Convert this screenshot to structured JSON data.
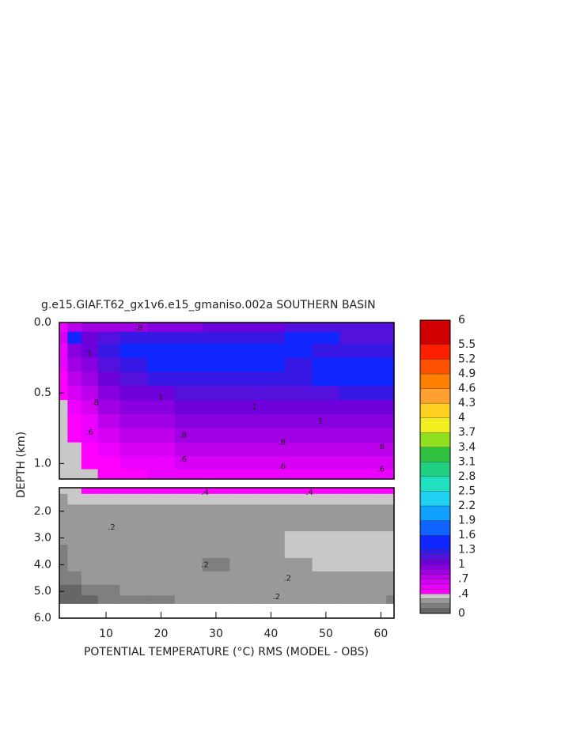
{
  "chart_data": {
    "type": "contour",
    "title": "g.e15.GIAF.T62_gx1v6.e15_gmaniso.002a SOUTHERN BASIN",
    "xlabel": "POTENTIAL TEMPERATURE (°C) RMS (MODEL - OBS)",
    "ylabel": "DEPTH (km)",
    "xlim": [
      1.5,
      62.4
    ],
    "xticks": [
      10,
      20,
      30,
      40,
      50,
      60
    ],
    "x": [
      2,
      4,
      7,
      10,
      15,
      20,
      25,
      30,
      35,
      40,
      45,
      50,
      55,
      60,
      62
    ],
    "panels": [
      {
        "ylim": [
          0,
          1.11
        ],
        "yticks": [
          {
            "value": 0,
            "label": "0.0"
          },
          {
            "value": 0.5,
            "label": "0.5"
          },
          {
            "value": 1.0,
            "label": "1.0"
          }
        ],
        "y": [
          0.03,
          0.1,
          0.2,
          0.3,
          0.4,
          0.5,
          0.6,
          0.7,
          0.8,
          0.9,
          1.0,
          1.08
        ],
        "z": [
          [
            0.5,
            0.7,
            0.8,
            0.85,
            0.85,
            0.9,
            0.95,
            1.0,
            1.0,
            1.05,
            1.1,
            1.1,
            1.1,
            1.15,
            1.15
          ],
          [
            0.6,
            1.35,
            1.0,
            1.1,
            1.2,
            1.25,
            1.25,
            1.25,
            1.25,
            1.2,
            1.3,
            1.35,
            1.1,
            1.15,
            1.15
          ],
          [
            0.55,
            0.9,
            1.0,
            1.2,
            1.35,
            1.35,
            1.35,
            1.35,
            1.35,
            1.3,
            1.3,
            1.25,
            1.2,
            1.2,
            1.2
          ],
          [
            0.5,
            0.8,
            0.95,
            1.1,
            1.2,
            1.3,
            1.35,
            1.35,
            1.35,
            1.3,
            1.25,
            1.35,
            1.35,
            1.3,
            1.3
          ],
          [
            0.45,
            0.7,
            0.85,
            1.0,
            1.1,
            1.2,
            1.25,
            1.25,
            1.25,
            1.25,
            1.2,
            1.35,
            1.4,
            1.4,
            1.4
          ],
          [
            0.4,
            0.6,
            0.75,
            0.9,
            1.0,
            1.05,
            1.1,
            1.15,
            1.15,
            1.15,
            1.15,
            1.15,
            1.2,
            1.2,
            1.2
          ],
          [
            0.38,
            0.5,
            0.65,
            0.8,
            0.9,
            0.95,
            1.0,
            1.0,
            1.0,
            1.0,
            1.0,
            1.0,
            1.0,
            1.0,
            1.0
          ],
          [
            0.3,
            0.45,
            0.55,
            0.7,
            0.8,
            0.85,
            0.9,
            0.9,
            0.92,
            0.92,
            0.92,
            0.92,
            0.92,
            0.92,
            0.92
          ],
          [
            0.3,
            0.4,
            0.5,
            0.6,
            0.7,
            0.78,
            0.8,
            0.82,
            0.82,
            0.82,
            0.82,
            0.82,
            0.82,
            0.8,
            0.8
          ],
          [
            0.3,
            0.38,
            0.45,
            0.55,
            0.62,
            0.68,
            0.7,
            0.72,
            0.72,
            0.72,
            0.72,
            0.72,
            0.72,
            0.7,
            0.7
          ],
          [
            0.3,
            0.35,
            0.4,
            0.48,
            0.55,
            0.58,
            0.6,
            0.62,
            0.62,
            0.62,
            0.62,
            0.62,
            0.6,
            0.6,
            0.6
          ],
          [
            0.3,
            0.32,
            0.38,
            0.42,
            0.45,
            0.5,
            0.52,
            0.55,
            0.55,
            0.55,
            0.55,
            0.55,
            0.55,
            0.55,
            0.55
          ]
        ]
      },
      {
        "ylim": [
          1.12,
          6.0
        ],
        "yticks": [
          {
            "value": 2,
            "label": "2.0"
          },
          {
            "value": 3,
            "label": "3.0"
          },
          {
            "value": 4,
            "label": "4.0"
          },
          {
            "value": 5,
            "label": "5.0"
          },
          {
            "value": 6,
            "label": "6.0"
          }
        ],
        "y": [
          1.2,
          1.5,
          2.0,
          2.5,
          3.0,
          3.5,
          4.0,
          4.5,
          5.0,
          5.3
        ],
        "z": [
          [
            0.35,
            0.38,
            0.4,
            0.4,
            0.42,
            0.45,
            0.45,
            0.45,
            0.45,
            0.45,
            0.45,
            0.45,
            0.45,
            0.45,
            0.45
          ],
          [
            0.28,
            0.3,
            0.32,
            0.33,
            0.35,
            0.35,
            0.36,
            0.36,
            0.36,
            0.36,
            0.38,
            0.38,
            0.38,
            0.38,
            0.38
          ],
          [
            0.22,
            0.28,
            0.28,
            0.25,
            0.25,
            0.25,
            0.28,
            0.28,
            0.28,
            0.28,
            0.28,
            0.28,
            0.28,
            0.28,
            0.28
          ],
          [
            0.2,
            0.28,
            0.28,
            0.2,
            0.25,
            0.25,
            0.25,
            0.25,
            0.25,
            0.25,
            0.28,
            0.28,
            0.28,
            0.28,
            0.28
          ],
          [
            0.2,
            0.28,
            0.28,
            0.25,
            0.25,
            0.25,
            0.25,
            0.25,
            0.25,
            0.25,
            0.32,
            0.32,
            0.32,
            0.32,
            0.32
          ],
          [
            0.18,
            0.28,
            0.28,
            0.28,
            0.25,
            0.25,
            0.25,
            0.25,
            0.25,
            0.25,
            0.32,
            0.32,
            0.32,
            0.32,
            0.32
          ],
          [
            0.15,
            0.25,
            0.28,
            0.28,
            0.28,
            0.25,
            0.22,
            0.18,
            0.25,
            0.25,
            0.28,
            0.32,
            0.32,
            0.32,
            0.32
          ],
          [
            0.12,
            0.15,
            0.22,
            0.25,
            0.28,
            0.28,
            0.28,
            0.25,
            0.22,
            0.2,
            0.25,
            0.25,
            0.25,
            0.25,
            0.25
          ],
          [
            0.08,
            0.08,
            0.12,
            0.15,
            0.2,
            0.22,
            0.25,
            0.25,
            0.25,
            0.25,
            0.25,
            0.25,
            0.25,
            0.25,
            0.22
          ],
          [
            0.05,
            0.05,
            0.08,
            0.1,
            0.15,
            0.18,
            0.25,
            0.25,
            0.2,
            0.2,
            0.25,
            0.25,
            0.25,
            0.25,
            0.15
          ]
        ]
      }
    ],
    "annotations": [
      {
        "label": ".8",
        "x": 16,
        "y": 0.04,
        "panel": 0
      },
      {
        "label": "1",
        "x": 7,
        "y": 0.22,
        "panel": 0
      },
      {
        "label": "1",
        "x": 20,
        "y": 0.53,
        "panel": 0
      },
      {
        "label": "1",
        "x": 37,
        "y": 0.6,
        "panel": 0
      },
      {
        "label": "1",
        "x": 49,
        "y": 0.7,
        "panel": 0
      },
      {
        "label": ".8",
        "x": 8,
        "y": 0.57,
        "panel": 0
      },
      {
        "label": ".6",
        "x": 7,
        "y": 0.78,
        "panel": 0
      },
      {
        "label": ".8",
        "x": 24,
        "y": 0.8,
        "panel": 0
      },
      {
        "label": ".8",
        "x": 42,
        "y": 0.85,
        "panel": 0
      },
      {
        "label": ".8",
        "x": 60,
        "y": 0.88,
        "panel": 0
      },
      {
        "label": ".6",
        "x": 24,
        "y": 0.97,
        "panel": 0
      },
      {
        "label": ".6",
        "x": 42,
        "y": 1.02,
        "panel": 0
      },
      {
        "label": ".6",
        "x": 60,
        "y": 1.04,
        "panel": 0
      },
      {
        "label": ".4",
        "x": 28,
        "y": 1.3,
        "panel": 1
      },
      {
        "label": ".4",
        "x": 47,
        "y": 1.3,
        "panel": 1
      },
      {
        "label": ".2",
        "x": 11,
        "y": 2.6,
        "panel": 1
      },
      {
        "label": ".2",
        "x": 28,
        "y": 4.0,
        "panel": 1
      },
      {
        "label": ".2",
        "x": 43,
        "y": 4.5,
        "panel": 1
      },
      {
        "label": ".2",
        "x": 41,
        "y": 5.2,
        "panel": 1
      }
    ],
    "colorbar": {
      "levels": [
        0,
        0.1,
        0.2,
        0.3,
        0.4,
        0.5,
        0.6,
        0.7,
        0.8,
        0.9,
        1,
        1.1,
        1.2,
        1.3,
        1.6,
        1.9,
        2.2,
        2.5,
        2.8,
        3.1,
        3.4,
        3.7,
        4,
        4.3,
        4.6,
        4.9,
        5.2,
        5.5,
        6
      ],
      "colors": [
        "#666666",
        "#7f7f7f",
        "#999999",
        "#c8c8c8",
        "#ff00ff",
        "#ec00ff",
        "#d800f4",
        "#bc00ec",
        "#a000e4",
        "#8800e0",
        "#6e00dc",
        "#5410dc",
        "#3818e4",
        "#1028ff",
        "#1064ff",
        "#10a0ff",
        "#20d0f0",
        "#20e0c0",
        "#20d080",
        "#30c040",
        "#90e020",
        "#f0f020",
        "#ffd020",
        "#ffa030",
        "#ff8000",
        "#ff5000",
        "#ff2000",
        "#d00000"
      ],
      "ticks": [
        {
          "value": 6,
          "label": "6"
        },
        {
          "value": 5.5,
          "label": "5.5"
        },
        {
          "value": 5.2,
          "label": "5.2"
        },
        {
          "value": 4.9,
          "label": "4.9"
        },
        {
          "value": 4.6,
          "label": "4.6"
        },
        {
          "value": 4.3,
          "label": "4.3"
        },
        {
          "value": 4,
          "label": "4"
        },
        {
          "value": 3.7,
          "label": "3.7"
        },
        {
          "value": 3.4,
          "label": "3.4"
        },
        {
          "value": 3.1,
          "label": "3.1"
        },
        {
          "value": 2.8,
          "label": "2.8"
        },
        {
          "value": 2.5,
          "label": "2.5"
        },
        {
          "value": 2.2,
          "label": "2.2"
        },
        {
          "value": 1.9,
          "label": "1.9"
        },
        {
          "value": 1.6,
          "label": "1.6"
        },
        {
          "value": 1.3,
          "label": "1.3"
        },
        {
          "value": 1,
          "label": "1"
        },
        {
          "value": 0.7,
          "label": ".7"
        },
        {
          "value": 0.4,
          "label": ".4"
        },
        {
          "value": 0,
          "label": "0"
        }
      ]
    }
  }
}
